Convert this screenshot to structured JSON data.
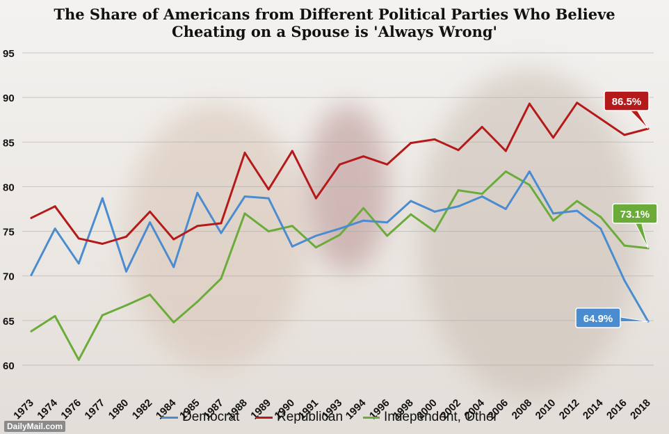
{
  "title_line1": "The Share of Americans from Different Political Parties Who Believe",
  "title_line2": "Cheating on a Spouse is 'Always Wrong'",
  "credit": "DailyMail.com",
  "colors": {
    "democrat": "#4a8ccf",
    "republican": "#b51a1a",
    "independent": "#6aab3a"
  },
  "chart_data": {
    "type": "line",
    "categories": [
      "1973",
      "1974",
      "1976",
      "1977",
      "1980",
      "1982",
      "1984",
      "1985",
      "1987",
      "1988",
      "1989",
      "1990",
      "1991",
      "1993",
      "1994",
      "1996",
      "1998",
      "2000",
      "2002",
      "2004",
      "2006",
      "2008",
      "2010",
      "2012",
      "2014",
      "2016",
      "2018"
    ],
    "series": [
      {
        "name": "Democrat",
        "values": [
          70.1,
          75.3,
          71.4,
          78.7,
          70.5,
          76.0,
          71.0,
          79.3,
          74.8,
          78.9,
          78.7,
          73.3,
          74.5,
          75.3,
          76.2,
          76.0,
          78.4,
          77.2,
          77.8,
          78.9,
          77.5,
          81.7,
          77.0,
          77.3,
          75.3,
          69.5,
          64.9
        ]
      },
      {
        "name": "Republican",
        "values": [
          76.5,
          77.8,
          74.2,
          73.6,
          74.4,
          77.2,
          74.1,
          75.6,
          75.9,
          83.8,
          79.7,
          84.0,
          78.7,
          82.5,
          83.4,
          82.5,
          84.9,
          85.3,
          84.1,
          86.7,
          84.0,
          89.3,
          85.5,
          89.4,
          87.6,
          85.8,
          86.5
        ]
      },
      {
        "name": "Independent, Other",
        "values": [
          63.8,
          65.5,
          60.6,
          65.6,
          66.7,
          67.9,
          64.8,
          67.1,
          69.7,
          77.0,
          75.0,
          75.6,
          73.2,
          74.6,
          77.6,
          74.5,
          76.9,
          75.0,
          79.6,
          79.2,
          81.7,
          80.2,
          76.2,
          78.4,
          76.6,
          73.4,
          73.1
        ]
      }
    ],
    "ylim": [
      60,
      95
    ],
    "yticks": [
      60,
      65,
      70,
      75,
      80,
      85,
      90,
      95
    ],
    "grid": true,
    "legend_position": "bottom",
    "callouts": [
      {
        "series": "Republican",
        "label": "86.5%"
      },
      {
        "series": "Independent, Other",
        "label": "73.1%"
      },
      {
        "series": "Democrat",
        "label": "64.9%"
      }
    ]
  }
}
